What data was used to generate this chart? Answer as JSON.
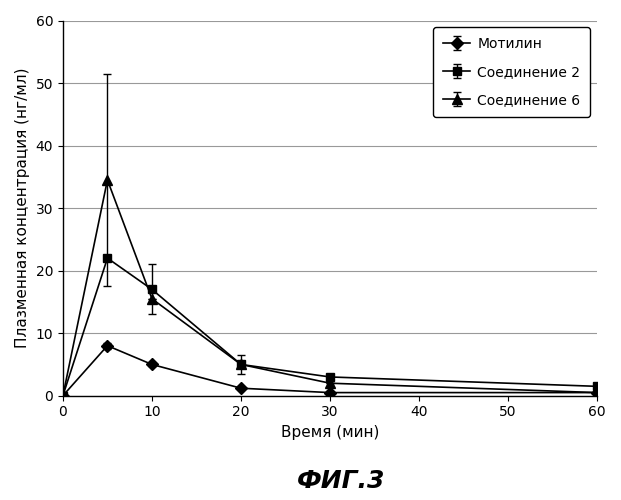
{
  "title": "ФИГ.3",
  "xlabel": "Время (мин)",
  "ylabel": "Плазменная концентрация (нг/мл)",
  "xlim": [
    0,
    60
  ],
  "ylim": [
    0,
    60
  ],
  "xticks": [
    0,
    10,
    20,
    30,
    40,
    50,
    60
  ],
  "yticks": [
    0,
    10,
    20,
    30,
    40,
    50,
    60
  ],
  "series": [
    {
      "label": "Мотилин",
      "x": [
        0,
        5,
        10,
        20,
        30,
        60
      ],
      "y": [
        0,
        8,
        5,
        1.2,
        0.5,
        0.5
      ],
      "yerr": [
        null,
        0.5,
        0.3,
        null,
        null,
        null
      ],
      "marker": "D",
      "color": "#000000",
      "linestyle": "-",
      "linewidth": 1.2,
      "markersize": 6
    },
    {
      "label": "Соединение 2",
      "x": [
        0,
        5,
        10,
        20,
        30,
        60
      ],
      "y": [
        0,
        22,
        17,
        5,
        3,
        1.5
      ],
      "yerr": [
        null,
        null,
        4,
        1.5,
        0.5,
        null
      ],
      "marker": "s",
      "color": "#000000",
      "linestyle": "-",
      "linewidth": 1.2,
      "markersize": 6
    },
    {
      "label": "Соединение 6",
      "x": [
        0,
        5,
        10,
        20,
        30,
        60
      ],
      "y": [
        0,
        34.5,
        15.5,
        5,
        2,
        0.5
      ],
      "yerr": [
        null,
        17,
        null,
        null,
        null,
        null
      ],
      "marker": "^",
      "color": "#000000",
      "linestyle": "-",
      "linewidth": 1.2,
      "markersize": 7
    }
  ],
  "legend_loc": "upper right",
  "grid_color": "#999999",
  "background_color": "#ffffff",
  "title_fontsize": 18,
  "axis_label_fontsize": 11,
  "tick_fontsize": 10,
  "legend_fontsize": 10
}
